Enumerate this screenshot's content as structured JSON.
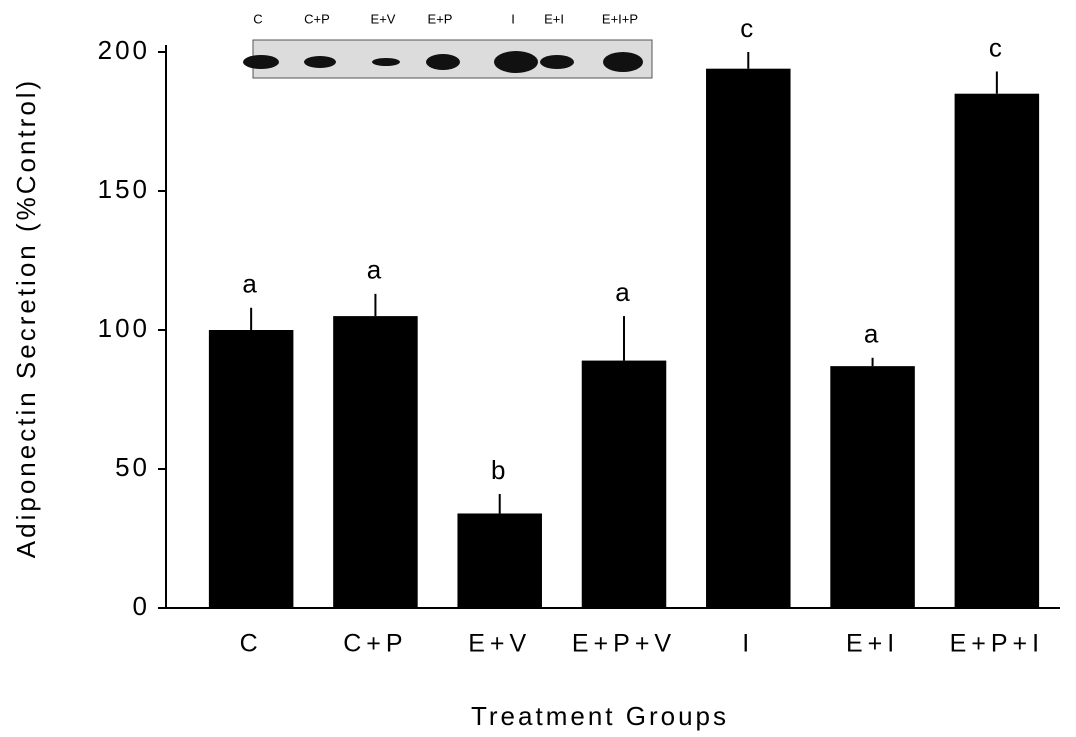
{
  "chart_data": {
    "type": "bar",
    "y_label": "Adiponectin  Secretion  (%Control)",
    "x_label": "Treatment  Groups",
    "categories": [
      "C",
      "C+P",
      "E+V",
      "E+P+V",
      "I",
      "E+I",
      "E+P+I"
    ],
    "values": [
      100,
      105,
      34,
      89,
      194,
      87,
      185
    ],
    "errors": [
      8,
      8,
      7,
      16,
      6,
      3,
      8
    ],
    "significance": [
      "a",
      "a",
      "b",
      "a",
      "c",
      "a",
      "c"
    ],
    "color": "#000000",
    "ylim": [
      0,
      200
    ],
    "yticks": [
      0,
      50,
      100,
      150,
      200
    ],
    "grid": false,
    "inset_lanes": [
      "C",
      "C+P",
      "E+V",
      "E+P",
      "I",
      "E+I",
      "E+I+P"
    ]
  }
}
